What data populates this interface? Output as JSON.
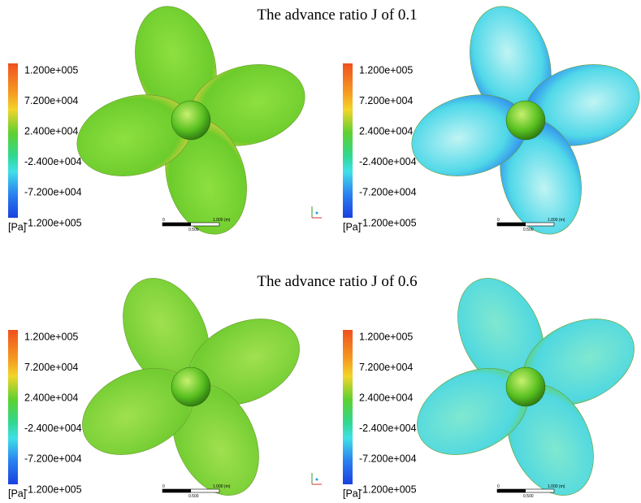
{
  "figure": {
    "rows": [
      {
        "title": "The advance ratio J of 0.1",
        "panels": [
          {
            "legend": {
              "labels": [
                "1.200e+005",
                "7.200e+004",
                "2.400e+004",
                "-2.400e+004",
                "-7.200e+004",
                "-1.200e+005"
              ],
              "unit": "[Pa]"
            },
            "scale": {
              "labels": [
                "0",
                "1.000 (m)",
                "0.500"
              ]
            }
          },
          {
            "legend": {
              "labels": [
                "1.200e+005",
                "7.200e+004",
                "2.400e+004",
                "-2.400e+004",
                "-7.200e+004",
                "-1.200e+005"
              ],
              "unit": "[Pa]"
            },
            "scale": {
              "labels": [
                "0",
                "1.000 (m)",
                "0.500"
              ]
            }
          }
        ]
      },
      {
        "title": "The advance ratio J of 0.6",
        "panels": [
          {
            "legend": {
              "labels": [
                "1.200e+005",
                "7.200e+004",
                "2.400e+004",
                "-2.400e+004",
                "-7.200e+004",
                "-1.200e+005"
              ],
              "unit": "[Pa]"
            },
            "scale": {
              "labels": [
                "0",
                "1.000 (m)",
                "0.500"
              ]
            }
          },
          {
            "legend": {
              "labels": [
                "1.200e+005",
                "7.200e+004",
                "2.400e+004",
                "-2.400e+004",
                "-7.200e+004",
                "-1.200e+005"
              ],
              "unit": "[Pa]"
            },
            "scale": {
              "labels": [
                "0",
                "1.000 (m)",
                "0.500"
              ]
            }
          }
        ]
      }
    ]
  }
}
